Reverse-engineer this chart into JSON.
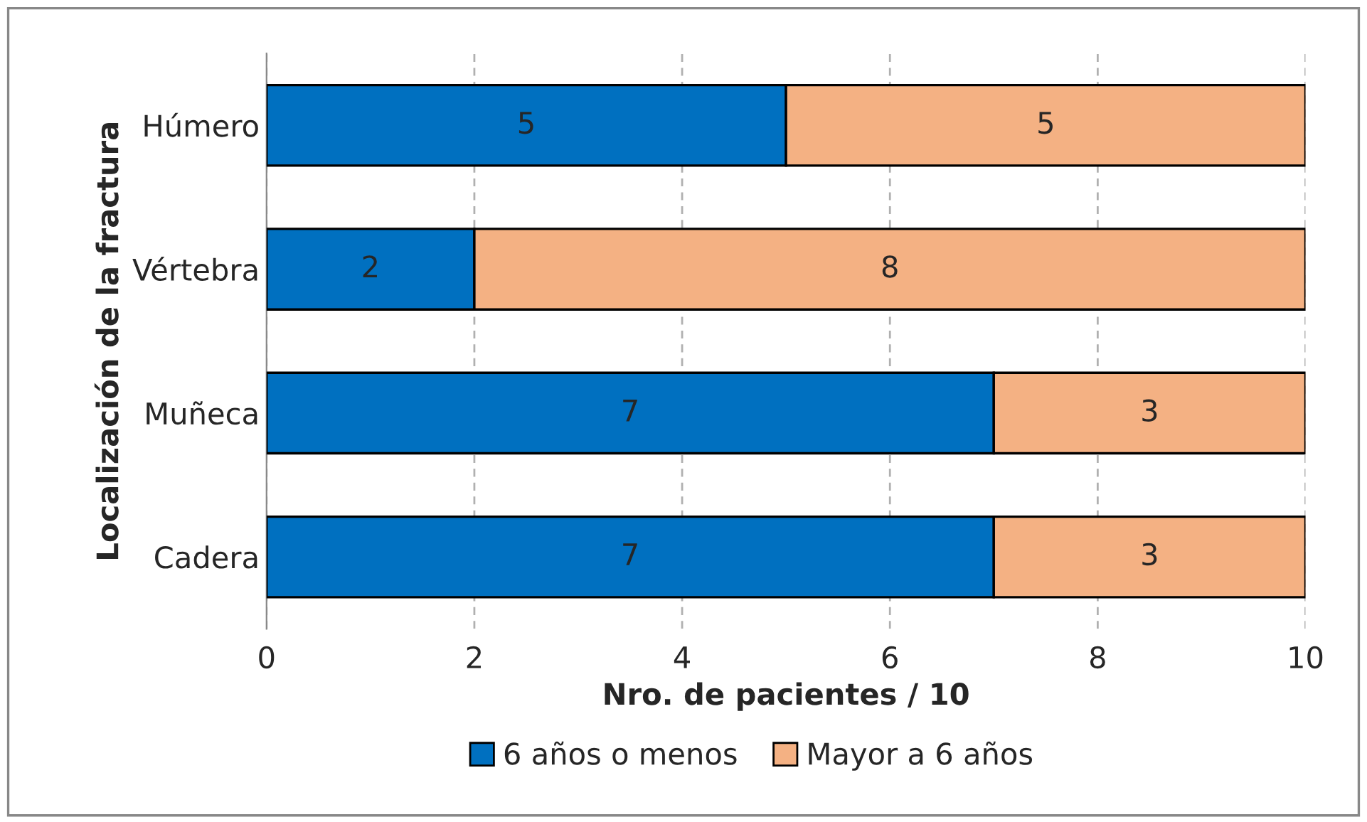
{
  "chart_data": {
    "type": "bar",
    "orientation": "horizontal",
    "stacked": true,
    "xlabel": "Nro. de pacientes / 10",
    "ylabel": "Localización de la fractura",
    "categories": [
      "Húmero",
      "Vértebra",
      "Muñeca",
      "Cadera"
    ],
    "series": [
      {
        "name": "6 años o menos",
        "color": "#0070c0",
        "values": [
          5,
          2,
          7,
          7
        ]
      },
      {
        "name": "Mayor a 6 años",
        "color": "#f4b183",
        "values": [
          5,
          8,
          3,
          3
        ]
      }
    ],
    "xlim": [
      0,
      10
    ],
    "xticks": [
      0,
      2,
      4,
      6,
      8,
      10
    ],
    "grid": "x",
    "legend": "bottom",
    "data_labels": true
  }
}
